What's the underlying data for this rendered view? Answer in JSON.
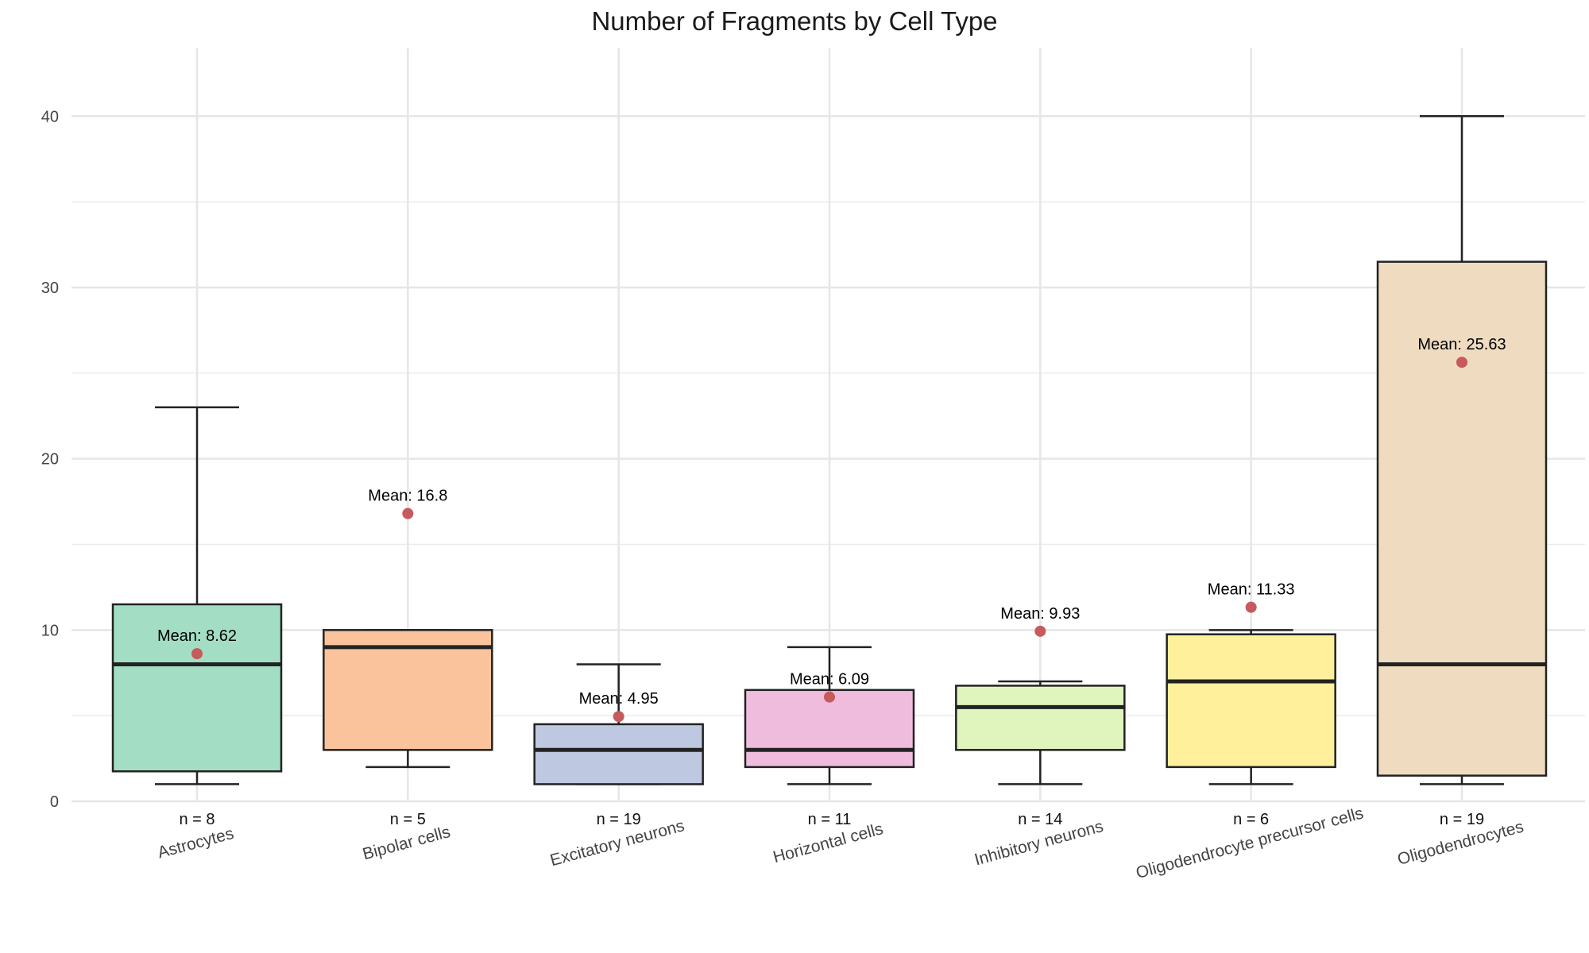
{
  "chart_data": {
    "type": "box",
    "title": "Number of Fragments by Cell Type",
    "xlabel": "",
    "ylabel": "",
    "ylim": [
      0,
      44
    ],
    "yticks": [
      0,
      10,
      20,
      30,
      40
    ],
    "grid": true,
    "categories": [
      "Astrocytes",
      "Bipolar cells",
      "Excitatory neurons",
      "Horizontal cells",
      "Inhibitory neurons",
      "Oligodendrocyte precursor cells",
      "Oligodendrocytes"
    ],
    "boxes": [
      {
        "category": "Astrocytes",
        "whisker_low": 1,
        "q1": 1.75,
        "median": 8,
        "q3": 11.5,
        "whisker_high": 23,
        "mean": 8.62,
        "mean_label": "Mean: 8.62",
        "n_label": "n = 8",
        "color": "#a3dec4"
      },
      {
        "category": "Bipolar cells",
        "whisker_low": 2,
        "q1": 3,
        "median": 9,
        "q3": 10,
        "whisker_high": 10,
        "mean": 16.8,
        "mean_label": "Mean: 16.8",
        "n_label": "n = 5",
        "color": "#fbc39c"
      },
      {
        "category": "Excitatory neurons",
        "whisker_low": 1,
        "q1": 1,
        "median": 3,
        "q3": 4.5,
        "whisker_high": 8,
        "mean": 4.95,
        "mean_label": "Mean: 4.95",
        "n_label": "n = 19",
        "color": "#bec9e1"
      },
      {
        "category": "Horizontal cells",
        "whisker_low": 1,
        "q1": 2,
        "median": 3,
        "q3": 6.5,
        "whisker_high": 9,
        "mean": 6.09,
        "mean_label": "Mean: 6.09",
        "n_label": "n = 11",
        "color": "#f0bcde"
      },
      {
        "category": "Inhibitory neurons",
        "whisker_low": 1,
        "q1": 3,
        "median": 5.5,
        "q3": 6.75,
        "whisker_high": 7,
        "mean": 9.93,
        "mean_label": "Mean: 9.93",
        "n_label": "n = 14",
        "color": "#e0f5bd"
      },
      {
        "category": "Oligodendrocyte precursor cells",
        "whisker_low": 1,
        "q1": 2,
        "median": 7,
        "q3": 9.75,
        "whisker_high": 10,
        "mean": 11.33,
        "mean_label": "Mean: 11.33",
        "n_label": "n = 6",
        "color": "#fff09c"
      },
      {
        "category": "Oligodendrocytes",
        "whisker_low": 1,
        "q1": 1.5,
        "median": 8,
        "q3": 31.5,
        "whisker_high": 40,
        "mean": 25.63,
        "mean_label": "Mean: 25.63",
        "n_label": "n = 19",
        "color": "#eedbc0"
      }
    ],
    "mean_marker_color": "#c65a5c"
  }
}
